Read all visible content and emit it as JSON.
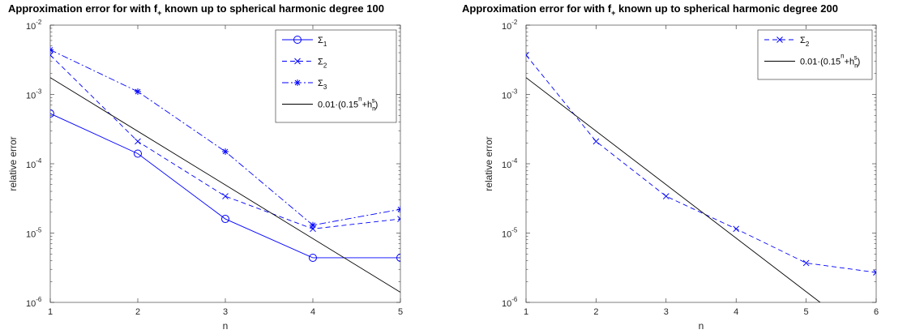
{
  "chart_data": [
    {
      "type": "line",
      "title_main": "Approximation error for with f",
      "title_sub": "+",
      "title_rest": " known up to spherical harmonic degree 100",
      "xlabel": "n",
      "ylabel": "relative error",
      "xlim": [
        1,
        5
      ],
      "ylim": [
        1e-06,
        0.01
      ],
      "yscale": "log",
      "xticks": [
        "1",
        "2",
        "3",
        "4",
        "5"
      ],
      "yticks": [
        "10",
        "10",
        "10",
        "10",
        "10"
      ],
      "ytick_exps": [
        "-6",
        "-5",
        "-4",
        "-3",
        "-2"
      ],
      "legend_position": "top-right",
      "series": [
        {
          "name": "Σ",
          "name_sub": "1",
          "color": "#0000ff",
          "dash": "solid",
          "marker": "circle",
          "x": [
            1,
            2,
            3,
            4,
            5
          ],
          "y": [
            0.00053,
            0.00014,
            1.6e-05,
            4.4e-06,
            4.4e-06
          ]
        },
        {
          "name": "Σ",
          "name_sub": "2",
          "color": "#0000ff",
          "dash": "dashed",
          "marker": "x",
          "x": [
            1,
            2,
            3,
            4,
            5
          ],
          "y": [
            0.0037,
            0.00021,
            3.4e-05,
            1.15e-05,
            1.6e-05
          ]
        },
        {
          "name": "Σ",
          "name_sub": "3",
          "color": "#0000ff",
          "dash": "dashdot",
          "marker": "star",
          "x": [
            1,
            2,
            3,
            4,
            5
          ],
          "y": [
            0.0044,
            0.0011,
            0.00015,
            1.3e-05,
            2.2e-05
          ]
        },
        {
          "name": "0.01·(0.15",
          "name_sup": "n",
          "name_mid": "+h",
          "name_sub2": "n",
          "name_sup2": "s",
          "name_end": ")",
          "color": "#000000",
          "dash": "solid",
          "marker": "none",
          "x": [
            1,
            5
          ],
          "y": [
            0.00175,
            1.4e-06
          ]
        }
      ]
    },
    {
      "type": "line",
      "title_main": "Approximation error for with f",
      "title_sub": "+",
      "title_rest": " known up to spherical harmonic degree 200",
      "xlabel": "n",
      "ylabel": "relative error",
      "xlim": [
        1,
        6
      ],
      "ylim": [
        1e-06,
        0.01
      ],
      "yscale": "log",
      "xticks": [
        "1",
        "2",
        "3",
        "4",
        "5",
        "6"
      ],
      "yticks": [
        "10",
        "10",
        "10",
        "10",
        "10"
      ],
      "ytick_exps": [
        "-6",
        "-5",
        "-4",
        "-3",
        "-2"
      ],
      "legend_position": "top-right",
      "series": [
        {
          "name": "Σ",
          "name_sub": "2",
          "color": "#0000ff",
          "dash": "dashed",
          "marker": "x",
          "x": [
            1,
            2,
            3,
            4,
            5,
            6
          ],
          "y": [
            0.0037,
            0.00021,
            3.4e-05,
            1.15e-05,
            3.7e-06,
            2.7e-06
          ]
        },
        {
          "name": "0.01·(0.15",
          "name_sup": "n",
          "name_mid": "+h",
          "name_sub2": "n",
          "name_sup2": "s",
          "name_end": ")",
          "color": "#000000",
          "dash": "solid",
          "marker": "none",
          "x": [
            1,
            5.2
          ],
          "y": [
            0.00175,
            1e-06
          ]
        }
      ]
    }
  ]
}
